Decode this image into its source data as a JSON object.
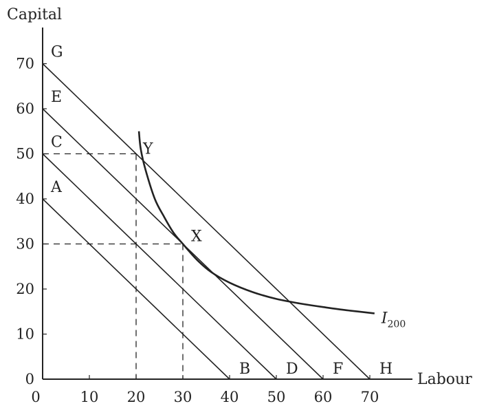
{
  "chart_data": {
    "type": "line",
    "xlabel": "Labour",
    "ylabel": "Capital",
    "xlim": [
      0,
      75
    ],
    "ylim": [
      0,
      80
    ],
    "x_ticks": [
      0,
      10,
      20,
      30,
      40,
      50,
      60,
      70
    ],
    "y_ticks": [
      0,
      10,
      20,
      30,
      40,
      50,
      60,
      70
    ],
    "grid": false,
    "isocost_lines": [
      {
        "start_label": "A",
        "end_label": "B",
        "intercept": 40
      },
      {
        "start_label": "C",
        "end_label": "D",
        "intercept": 50
      },
      {
        "start_label": "E",
        "end_label": "F",
        "intercept": 60
      },
      {
        "start_label": "G",
        "end_label": "H",
        "intercept": 70
      }
    ],
    "isoquant": {
      "label": "I",
      "subscript": "200",
      "points": [
        [
          20.6,
          55
        ],
        [
          21,
          51
        ],
        [
          22,
          46.5
        ],
        [
          24,
          40
        ],
        [
          26,
          36
        ],
        [
          28,
          32.5
        ],
        [
          30,
          30
        ],
        [
          33,
          26.5
        ],
        [
          36,
          23.8
        ],
        [
          40,
          21.4
        ],
        [
          45,
          19.3
        ],
        [
          50,
          17.8
        ],
        [
          55,
          16.8
        ],
        [
          60,
          16
        ],
        [
          65,
          15.3
        ],
        [
          71,
          14.6
        ]
      ]
    },
    "points": [
      {
        "label": "Y",
        "x": 20,
        "y": 50
      },
      {
        "label": "X",
        "x": 30,
        "y": 30
      }
    ],
    "colors": {
      "line": "#222222",
      "background": "#ffffff"
    }
  }
}
